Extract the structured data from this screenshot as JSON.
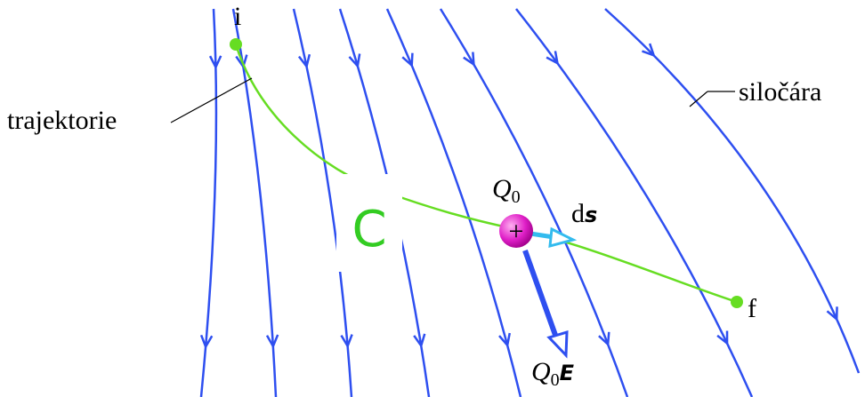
{
  "labels": {
    "start": "i",
    "end": "f",
    "trajectory": "trajektorie",
    "field_line": "siločára",
    "path": "C",
    "sign": "+",
    "charge": {
      "symbol": "Q",
      "subscript": "0"
    },
    "displacement": {
      "prefix": "d",
      "vector": "s"
    },
    "force": {
      "symbol": "Q",
      "subscript": "0",
      "vector": "E"
    }
  }
}
